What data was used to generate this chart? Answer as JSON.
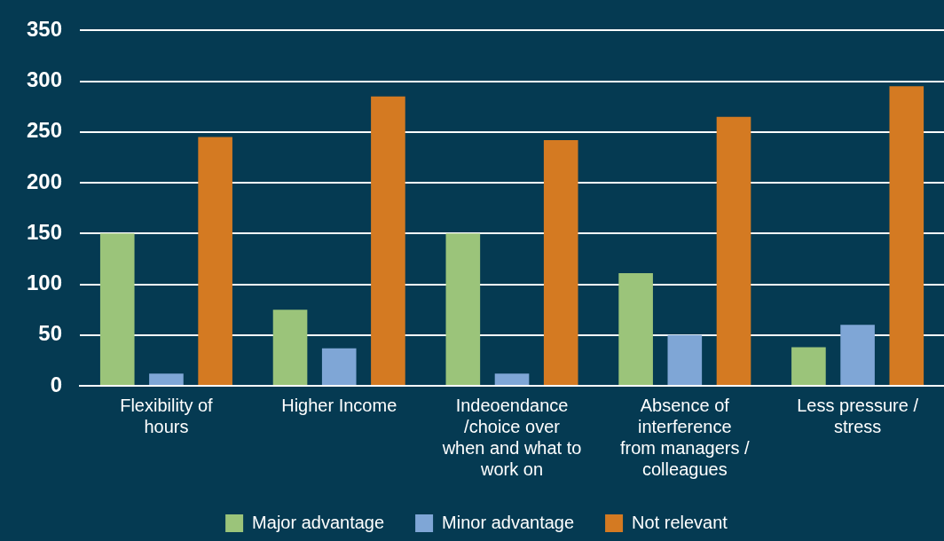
{
  "chart_data": {
    "type": "bar",
    "categories": [
      "Flexibility of hours",
      "Higher Income",
      "Indeoendance /choice over when and what to work on",
      "Absence of interference from managers / colleagues",
      "Less pressure / stress"
    ],
    "series": [
      {
        "name": "Major advantage",
        "color": "#9bc47a",
        "values": [
          150,
          75,
          150,
          111,
          38
        ]
      },
      {
        "name": "Minor advantage",
        "color": "#7fa6d6",
        "values": [
          12,
          37,
          12,
          50,
          60
        ]
      },
      {
        "name": "Not relevant",
        "color": "#d47a22",
        "values": [
          245,
          285,
          242,
          265,
          295
        ]
      }
    ],
    "ylim": [
      0,
      350
    ],
    "yticks": [
      0,
      50,
      100,
      150,
      200,
      250,
      300,
      350
    ],
    "grid": "y",
    "legend": "bottom"
  }
}
